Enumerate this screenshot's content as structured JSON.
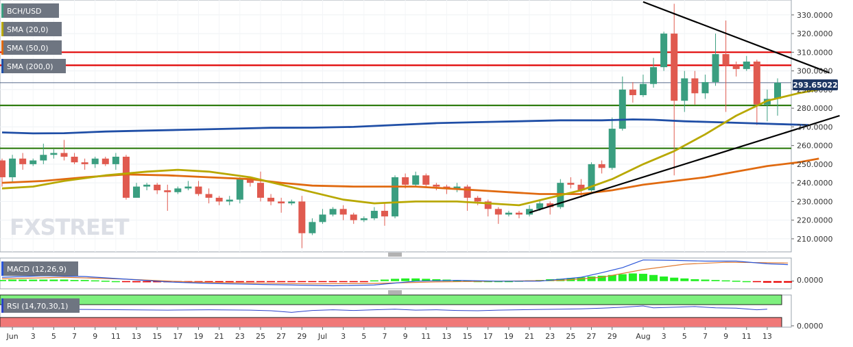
{
  "legend": {
    "symbol": "BCH/USD",
    "sma20": "SMA (20,0)",
    "sma50": "SMA (50,0)",
    "sma200": "SMA (200,0)",
    "macd": "MACD (12,26,9)",
    "rsi": "RSI (14,70,30,1)"
  },
  "watermark": "FXSTREET",
  "price_tag": "293.65022",
  "colors": {
    "up": "#3a9e80",
    "down": "#e05a4f",
    "sma20": "#b8a800",
    "sma50": "#e06a10",
    "sma200": "#1f4ea6",
    "resistance": "#e00000",
    "support": "#2f7d10",
    "trend": "#000000",
    "macd_line": "#2a55d8",
    "signal_line": "#e07a30",
    "hist_pos": "#22ee22",
    "hist_neg": "#e80000",
    "rsi_line": "#2a40c8",
    "rsi_over": "#7ef07e",
    "rsi_under": "#f07878",
    "tag_bg": "#1e3763"
  },
  "chart_data": {
    "type": "candlestick",
    "pair": "BCH/USD",
    "ylim": [
      203,
      338
    ],
    "yticks": [
      "210.0000",
      "220.0000",
      "230.0000",
      "240.0000",
      "250.0000",
      "260.0000",
      "270.0000",
      "280.0000",
      "290.0000",
      "300.0000",
      "310.0000",
      "320.0000",
      "330.0000"
    ],
    "ytick_values": [
      210,
      220,
      230,
      240,
      250,
      260,
      270,
      280,
      290,
      300,
      310,
      320,
      330
    ],
    "xticks": [
      {
        "i": 1,
        "label": "Jun"
      },
      {
        "i": 3,
        "label": "3"
      },
      {
        "i": 5,
        "label": "5"
      },
      {
        "i": 7,
        "label": "7"
      },
      {
        "i": 9,
        "label": "9"
      },
      {
        "i": 11,
        "label": "11"
      },
      {
        "i": 13,
        "label": "13"
      },
      {
        "i": 15,
        "label": "15"
      },
      {
        "i": 17,
        "label": "17"
      },
      {
        "i": 19,
        "label": "19"
      },
      {
        "i": 21,
        "label": "21"
      },
      {
        "i": 23,
        "label": "23"
      },
      {
        "i": 25,
        "label": "25"
      },
      {
        "i": 27,
        "label": "27"
      },
      {
        "i": 29,
        "label": "29"
      },
      {
        "i": 31,
        "label": "Jul"
      },
      {
        "i": 33,
        "label": "3"
      },
      {
        "i": 35,
        "label": "5"
      },
      {
        "i": 37,
        "label": "7"
      },
      {
        "i": 39,
        "label": "9"
      },
      {
        "i": 41,
        "label": "11"
      },
      {
        "i": 43,
        "label": "13"
      },
      {
        "i": 45,
        "label": "15"
      },
      {
        "i": 47,
        "label": "17"
      },
      {
        "i": 49,
        "label": "19"
      },
      {
        "i": 51,
        "label": "21"
      },
      {
        "i": 53,
        "label": "23"
      },
      {
        "i": 55,
        "label": "25"
      },
      {
        "i": 57,
        "label": "27"
      },
      {
        "i": 59,
        "label": "29"
      },
      {
        "i": 62,
        "label": "Aug"
      },
      {
        "i": 64,
        "label": "3"
      },
      {
        "i": 66,
        "label": "5"
      },
      {
        "i": 68,
        "label": "7"
      },
      {
        "i": 70,
        "label": "9"
      },
      {
        "i": 72,
        "label": "11"
      },
      {
        "i": 74,
        "label": "13"
      }
    ],
    "candles": [
      [
        252,
        243,
        253,
        238
      ],
      [
        243,
        253,
        255,
        240
      ],
      [
        253,
        250,
        256,
        247
      ],
      [
        250,
        252,
        253,
        249
      ],
      [
        252,
        255,
        261,
        250
      ],
      [
        255,
        256,
        258,
        253
      ],
      [
        256,
        254,
        263,
        252
      ],
      [
        254,
        251,
        256,
        250
      ],
      [
        251,
        250,
        253,
        247
      ],
      [
        250,
        253,
        254,
        248
      ],
      [
        253,
        250,
        254,
        249
      ],
      [
        250,
        254,
        256,
        247
      ],
      [
        254,
        232,
        255,
        231
      ],
      [
        232,
        238,
        240,
        233
      ],
      [
        238,
        239,
        240,
        236
      ],
      [
        239,
        236,
        240,
        234
      ],
      [
        236,
        235,
        239,
        225
      ],
      [
        235,
        237,
        238,
        234
      ],
      [
        237,
        238,
        241,
        236
      ],
      [
        238,
        234,
        241,
        233
      ],
      [
        234,
        232,
        237,
        229
      ],
      [
        232,
        230,
        233,
        228
      ],
      [
        230,
        231,
        233,
        228
      ],
      [
        231,
        242,
        243,
        229
      ],
      [
        242,
        240,
        243,
        238
      ],
      [
        240,
        232,
        246,
        230
      ],
      [
        232,
        230,
        234,
        228
      ],
      [
        230,
        229,
        232,
        224
      ],
      [
        229,
        230,
        231,
        228
      ],
      [
        230,
        213,
        233,
        205
      ],
      [
        213,
        219,
        221,
        212
      ],
      [
        219,
        223,
        226,
        218
      ],
      [
        223,
        226,
        227,
        222
      ],
      [
        226,
        223,
        228,
        220
      ],
      [
        223,
        220,
        224,
        218
      ],
      [
        220,
        221,
        222,
        219
      ],
      [
        221,
        225,
        227,
        220
      ],
      [
        225,
        222,
        229,
        217
      ],
      [
        222,
        243,
        244,
        221
      ],
      [
        243,
        239,
        245,
        237
      ],
      [
        239,
        244,
        246,
        238
      ],
      [
        244,
        239,
        245,
        238
      ],
      [
        239,
        238,
        240,
        236
      ],
      [
        238,
        237,
        239,
        234
      ],
      [
        237,
        238,
        240,
        235
      ],
      [
        238,
        232,
        239,
        225
      ],
      [
        232,
        230,
        233,
        228
      ],
      [
        230,
        226,
        231,
        222
      ],
      [
        226,
        223,
        227,
        218
      ],
      [
        223,
        224,
        225,
        222
      ],
      [
        224,
        223,
        225,
        221
      ],
      [
        223,
        226,
        228,
        222
      ],
      [
        226,
        229,
        231,
        225
      ],
      [
        229,
        227,
        230,
        223
      ],
      [
        227,
        240,
        242,
        226
      ],
      [
        240,
        239,
        243,
        237
      ],
      [
        239,
        236,
        242,
        232
      ],
      [
        236,
        250,
        251,
        234
      ],
      [
        250,
        248,
        252,
        245
      ],
      [
        248,
        269,
        275,
        247
      ],
      [
        269,
        290,
        297,
        268
      ],
      [
        290,
        287,
        294,
        283
      ],
      [
        287,
        293,
        298,
        286
      ],
      [
        293,
        302,
        307,
        291
      ],
      [
        302,
        320,
        321,
        300
      ],
      [
        320,
        284,
        336,
        244
      ],
      [
        284,
        296,
        300,
        278
      ],
      [
        296,
        288,
        300,
        282
      ],
      [
        288,
        294,
        298,
        285
      ],
      [
        294,
        309,
        320,
        292
      ],
      [
        309,
        303,
        327,
        278
      ],
      [
        303,
        301,
        305,
        297
      ],
      [
        301,
        305,
        308,
        300
      ],
      [
        305,
        282,
        306,
        271
      ],
      [
        282,
        285,
        290,
        273
      ],
      [
        285,
        293.65,
        296,
        276
      ]
    ],
    "sma20": [
      [
        0,
        237
      ],
      [
        3,
        238
      ],
      [
        6,
        241
      ],
      [
        10,
        244
      ],
      [
        14,
        246
      ],
      [
        17,
        247
      ],
      [
        20,
        246
      ],
      [
        24,
        243
      ],
      [
        27,
        239
      ],
      [
        30,
        235
      ],
      [
        33,
        231
      ],
      [
        36,
        229
      ],
      [
        40,
        230
      ],
      [
        44,
        230
      ],
      [
        47,
        229
      ],
      [
        50,
        228
      ],
      [
        53,
        232
      ],
      [
        56,
        236
      ],
      [
        59,
        242
      ],
      [
        62,
        250
      ],
      [
        65,
        257
      ],
      [
        68,
        266
      ],
      [
        71,
        276
      ],
      [
        74,
        284
      ],
      [
        77,
        288
      ],
      [
        79,
        290
      ]
    ],
    "sma50": [
      [
        0,
        240
      ],
      [
        4,
        241
      ],
      [
        8,
        243
      ],
      [
        12,
        244.5
      ],
      [
        16,
        244
      ],
      [
        20,
        243
      ],
      [
        24,
        242
      ],
      [
        27,
        240
      ],
      [
        30,
        238.5
      ],
      [
        34,
        238
      ],
      [
        37,
        238
      ],
      [
        40,
        238
      ],
      [
        43,
        237
      ],
      [
        46,
        236
      ],
      [
        49,
        235
      ],
      [
        52,
        234
      ],
      [
        56,
        234
      ],
      [
        59,
        236
      ],
      [
        62,
        239
      ],
      [
        65,
        241
      ],
      [
        68,
        243
      ],
      [
        71,
        246
      ],
      [
        74,
        249
      ],
      [
        77,
        251
      ],
      [
        79,
        253
      ]
    ],
    "sma200": [
      [
        0,
        267
      ],
      [
        3,
        266.5
      ],
      [
        6,
        266.6
      ],
      [
        10,
        267.5
      ],
      [
        14,
        268
      ],
      [
        18,
        268.5
      ],
      [
        22,
        269
      ],
      [
        26,
        269.5
      ],
      [
        30,
        269.6
      ],
      [
        34,
        270
      ],
      [
        38,
        271
      ],
      [
        42,
        272
      ],
      [
        46,
        272.5
      ],
      [
        50,
        273
      ],
      [
        54,
        273.5
      ],
      [
        58,
        273.5
      ],
      [
        61,
        274
      ],
      [
        63,
        273.8
      ],
      [
        66,
        273
      ],
      [
        69,
        272.5
      ],
      [
        72,
        272
      ],
      [
        75,
        271.5
      ],
      [
        78,
        271
      ]
    ],
    "resistance_levels": [
      310,
      303
    ],
    "support_levels": [
      281.5,
      258.5
    ],
    "current_price": 293.65,
    "trendlines": [
      {
        "from": [
          51,
          224
        ],
        "to": [
          81,
          276
        ]
      },
      {
        "from": [
          62,
          337
        ],
        "to": [
          80,
          299
        ]
      }
    ],
    "macd": {
      "ylim": [
        -0.2,
        0.6
      ],
      "ytick": "0.0000",
      "macd_line": [
        [
          0,
          0.1
        ],
        [
          4,
          0.14
        ],
        [
          8,
          0.12
        ],
        [
          12,
          0.05
        ],
        [
          16,
          -0.02
        ],
        [
          20,
          -0.06
        ],
        [
          24,
          -0.08
        ],
        [
          28,
          -0.1
        ],
        [
          32,
          -0.12
        ],
        [
          36,
          -0.1
        ],
        [
          40,
          0.0
        ],
        [
          44,
          0.02
        ],
        [
          48,
          0.0
        ],
        [
          52,
          0.0
        ],
        [
          56,
          0.1
        ],
        [
          58,
          0.22
        ],
        [
          60,
          0.35
        ],
        [
          62,
          0.55
        ],
        [
          65,
          0.54
        ],
        [
          68,
          0.52
        ],
        [
          71,
          0.52
        ],
        [
          74,
          0.45
        ],
        [
          76,
          0.43
        ]
      ],
      "signal_line": [
        [
          0,
          0.06
        ],
        [
          6,
          0.1
        ],
        [
          12,
          0.05
        ],
        [
          18,
          -0.02
        ],
        [
          24,
          -0.05
        ],
        [
          30,
          -0.07
        ],
        [
          36,
          -0.06
        ],
        [
          42,
          -0.02
        ],
        [
          48,
          0.0
        ],
        [
          54,
          0.02
        ],
        [
          58,
          0.1
        ],
        [
          62,
          0.3
        ],
        [
          66,
          0.44
        ],
        [
          70,
          0.49
        ],
        [
          74,
          0.48
        ],
        [
          76,
          0.47
        ]
      ],
      "histogram": [
        0.03,
        0.04,
        0.04,
        0.04,
        0.04,
        0.04,
        0.04,
        0.03,
        0.03,
        0.02,
        0.01,
        0.0,
        -0.02,
        -0.03,
        -0.03,
        -0.03,
        -0.03,
        -0.03,
        -0.03,
        -0.03,
        -0.03,
        -0.03,
        -0.02,
        -0.02,
        -0.02,
        -0.02,
        -0.02,
        -0.02,
        -0.02,
        -0.02,
        -0.02,
        -0.01,
        -0.01,
        -0.01,
        -0.01,
        -0.01,
        0.02,
        0.04,
        0.06,
        0.07,
        0.07,
        0.06,
        0.05,
        0.04,
        0.02,
        0.01,
        0.0,
        0.0,
        0.0,
        0.0,
        0.01,
        0.02,
        0.03,
        0.05,
        0.06,
        0.08,
        0.1,
        0.12,
        0.14,
        0.16,
        0.18,
        0.2,
        0.19,
        0.16,
        0.12,
        0.09,
        0.07,
        0.05,
        0.04,
        0.03,
        0.02,
        0.01,
        0.0,
        -0.02,
        -0.04,
        -0.04,
        -0.04
      ]
    },
    "rsi": {
      "ylim": [
        0,
        100
      ],
      "ytick": "0.0000",
      "upper": 70,
      "lower": 30,
      "values": [
        [
          0,
          55
        ],
        [
          4,
          56
        ],
        [
          8,
          55
        ],
        [
          12,
          54
        ],
        [
          16,
          53
        ],
        [
          20,
          54
        ],
        [
          24,
          53
        ],
        [
          26,
          51
        ],
        [
          28,
          46
        ],
        [
          30,
          52
        ],
        [
          32,
          54
        ],
        [
          34,
          52
        ],
        [
          36,
          54
        ],
        [
          38,
          56
        ],
        [
          40,
          53
        ],
        [
          42,
          54
        ],
        [
          44,
          52
        ],
        [
          46,
          51
        ],
        [
          48,
          53
        ],
        [
          50,
          54
        ],
        [
          52,
          55
        ],
        [
          54,
          56
        ],
        [
          56,
          57
        ],
        [
          58,
          59
        ],
        [
          60,
          62
        ],
        [
          62,
          66
        ],
        [
          63,
          60
        ],
        [
          65,
          62
        ],
        [
          67,
          64
        ],
        [
          69,
          60
        ],
        [
          71,
          59
        ],
        [
          73,
          54
        ],
        [
          74,
          56
        ]
      ]
    }
  }
}
